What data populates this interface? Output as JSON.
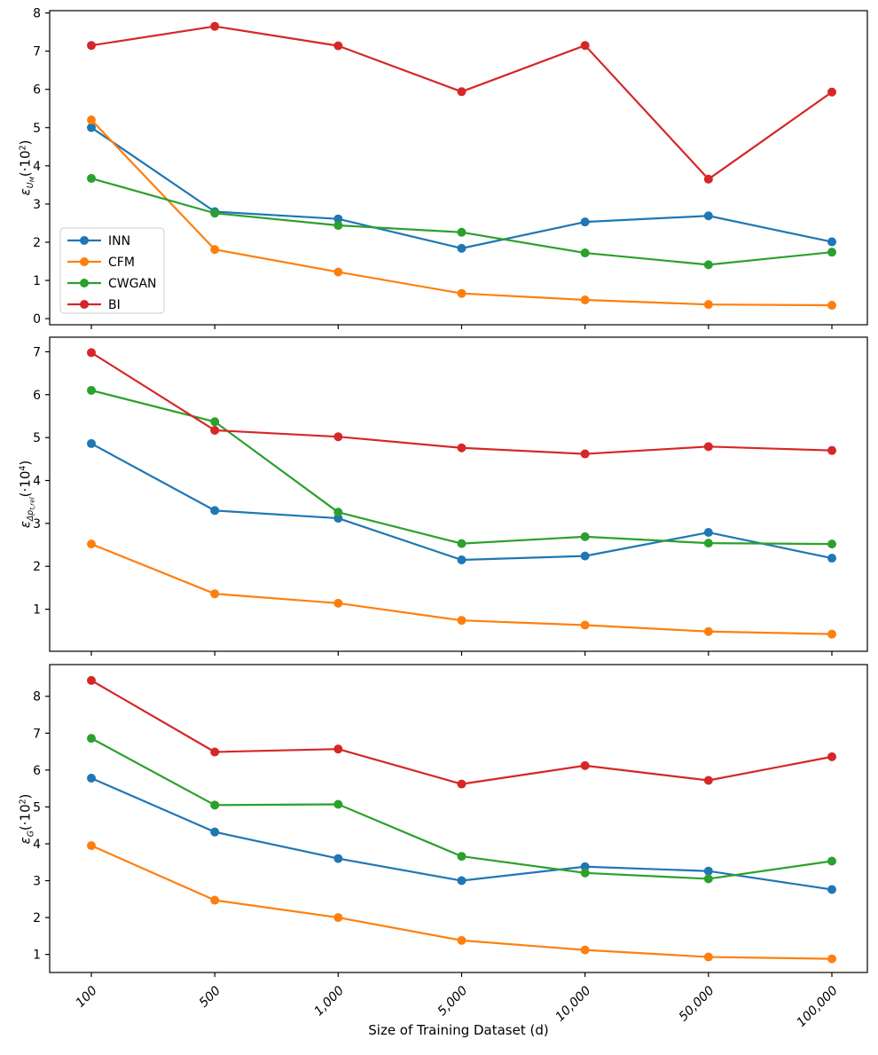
{
  "figure": {
    "xlabel": "Size of Training Dataset (d)",
    "background": "#ffffff",
    "spine_color": "#000000",
    "legend": {
      "position": "lower left of top chart",
      "entries": [
        "INN",
        "CFM",
        "CWGAN",
        "BI"
      ]
    },
    "colors": {
      "INN": "#1f77b4",
      "CFM": "#ff7f0e",
      "CWGAN": "#2ca02c",
      "BI": "#d62728"
    }
  },
  "chart_data": [
    {
      "type": "line",
      "title": "",
      "ylabel": "ε_UM(·10²)",
      "ylabel_parts": [
        {
          "text": "ε",
          "style": "base"
        },
        {
          "text": "U",
          "style": "sub"
        },
        {
          "text": "M",
          "style": "subsub"
        },
        {
          "text": "(·10",
          "style": "normal"
        },
        {
          "text": "2",
          "style": "sup"
        },
        {
          "text": ")",
          "style": "normal"
        }
      ],
      "categories": [
        "100",
        "500",
        "1,000",
        "5,000",
        "10,000",
        "50,000",
        "100,000"
      ],
      "yticks": [
        0,
        1,
        2,
        3,
        4,
        5,
        6,
        7,
        8
      ],
      "ylim": [
        -0.16,
        8.06
      ],
      "grid": false,
      "series": [
        {
          "name": "INN",
          "values": [
            5.0,
            2.8,
            2.61,
            1.84,
            2.53,
            2.69,
            2.01
          ]
        },
        {
          "name": "CFM",
          "values": [
            5.2,
            1.81,
            1.22,
            0.66,
            0.49,
            0.37,
            0.35
          ]
        },
        {
          "name": "CWGAN",
          "values": [
            3.67,
            2.76,
            2.44,
            2.26,
            1.72,
            1.41,
            1.74
          ]
        },
        {
          "name": "BI",
          "values": [
            7.15,
            7.65,
            7.14,
            5.94,
            7.15,
            3.65,
            5.93
          ]
        }
      ]
    },
    {
      "type": "line",
      "title": "",
      "ylabel": "ε_Δpt,rel(·10⁴)",
      "ylabel_parts": [
        {
          "text": "ε",
          "style": "base"
        },
        {
          "text": "Δp",
          "style": "sub"
        },
        {
          "text": "t,rel",
          "style": "subsub"
        },
        {
          "text": "(·10",
          "style": "normal"
        },
        {
          "text": "4",
          "style": "sup"
        },
        {
          "text": ")",
          "style": "normal"
        }
      ],
      "categories": [
        "100",
        "500",
        "1,000",
        "5,000",
        "10,000",
        "50,000",
        "100,000"
      ],
      "yticks": [
        1,
        2,
        3,
        4,
        5,
        6,
        7
      ],
      "ylim": [
        0.02,
        7.34
      ],
      "grid": false,
      "series": [
        {
          "name": "INN",
          "values": [
            4.86,
            3.3,
            3.12,
            2.15,
            2.24,
            2.79,
            2.19
          ]
        },
        {
          "name": "CFM",
          "values": [
            2.52,
            1.36,
            1.14,
            0.74,
            0.63,
            0.48,
            0.42
          ]
        },
        {
          "name": "CWGAN",
          "values": [
            6.1,
            5.37,
            3.26,
            2.53,
            2.69,
            2.54,
            2.52
          ]
        },
        {
          "name": "BI",
          "values": [
            6.98,
            5.17,
            5.02,
            4.76,
            4.62,
            4.79,
            4.7
          ]
        }
      ]
    },
    {
      "type": "line",
      "title": "",
      "ylabel": "ε_G(·10²)",
      "ylabel_parts": [
        {
          "text": "ε",
          "style": "base"
        },
        {
          "text": "G",
          "style": "sub"
        },
        {
          "text": "(·10",
          "style": "normal"
        },
        {
          "text": "2",
          "style": "sup"
        },
        {
          "text": ")",
          "style": "normal"
        }
      ],
      "categories": [
        "100",
        "500",
        "1,000",
        "5,000",
        "10,000",
        "50,000",
        "100,000"
      ],
      "yticks": [
        1,
        2,
        3,
        4,
        5,
        6,
        7,
        8
      ],
      "ylim": [
        0.51,
        8.86
      ],
      "grid": false,
      "series": [
        {
          "name": "INN",
          "values": [
            5.78,
            4.32,
            3.6,
            3.0,
            3.38,
            3.26,
            2.76
          ]
        },
        {
          "name": "CFM",
          "values": [
            3.95,
            2.47,
            2.0,
            1.38,
            1.12,
            0.93,
            0.88
          ]
        },
        {
          "name": "CWGAN",
          "values": [
            6.86,
            5.05,
            5.07,
            3.66,
            3.21,
            3.05,
            3.53
          ]
        },
        {
          "name": "BI",
          "values": [
            8.43,
            6.49,
            6.57,
            5.62,
            6.12,
            5.72,
            6.36
          ]
        }
      ]
    }
  ]
}
